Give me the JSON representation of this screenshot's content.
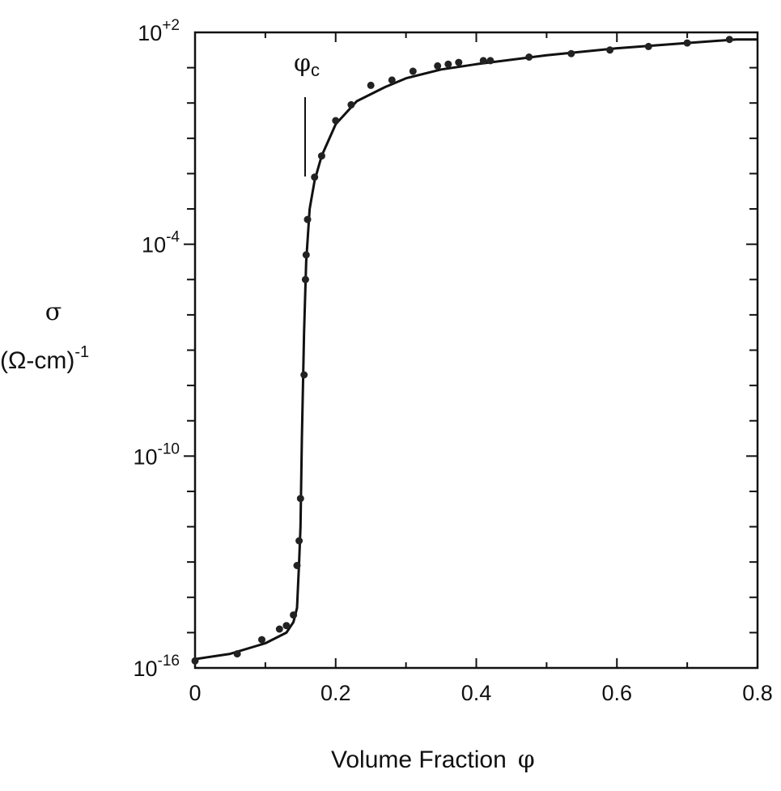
{
  "chart_data": {
    "type": "scatter",
    "xlabel": "Volume  Fraction",
    "xlabel_symbol": "φ",
    "ylabel_symbol": "σ",
    "ylabel_unit_base": "(Ω-cm)",
    "ylabel_unit_exp": "-1",
    "x_ticks": [
      "0",
      "0.2",
      "0.4",
      "0.6",
      "0.8"
    ],
    "y_ticks": [
      {
        "exp": -16,
        "base": "10",
        "sup": "-16"
      },
      {
        "exp": -10,
        "base": "10",
        "sup": "-10"
      },
      {
        "exp": -4,
        "base": "10",
        "sup": "-4"
      },
      {
        "exp": 2,
        "base": "10",
        "sup": "+2"
      }
    ],
    "xlim": [
      0,
      0.8
    ],
    "ylim_log10": [
      -16,
      2
    ],
    "y_scale": "log",
    "grid": false,
    "annotation": {
      "symbol": "φ",
      "subscript": "c",
      "x": 0.157
    },
    "series": [
      {
        "kind": "points",
        "points": [
          [
            0.0,
            -15.8
          ],
          [
            0.06,
            -15.6
          ],
          [
            0.095,
            -15.2
          ],
          [
            0.12,
            -14.9
          ],
          [
            0.13,
            -14.8
          ],
          [
            0.14,
            -14.5
          ],
          [
            0.145,
            -13.1
          ],
          [
            0.148,
            -12.4
          ],
          [
            0.15,
            -11.2
          ],
          [
            0.155,
            -7.7
          ],
          [
            0.157,
            -5.0
          ],
          [
            0.158,
            -4.3
          ],
          [
            0.16,
            -3.3
          ],
          [
            0.17,
            -2.1
          ],
          [
            0.18,
            -1.5
          ],
          [
            0.2,
            -0.5
          ],
          [
            0.222,
            -0.05
          ],
          [
            0.25,
            0.5
          ],
          [
            0.28,
            0.65
          ],
          [
            0.31,
            0.9
          ],
          [
            0.345,
            1.05
          ],
          [
            0.36,
            1.1
          ],
          [
            0.375,
            1.15
          ],
          [
            0.41,
            1.2
          ],
          [
            0.42,
            1.2
          ],
          [
            0.475,
            1.3
          ],
          [
            0.535,
            1.4
          ],
          [
            0.59,
            1.5
          ],
          [
            0.645,
            1.6
          ],
          [
            0.7,
            1.7
          ],
          [
            0.76,
            1.8
          ]
        ]
      },
      {
        "kind": "curve",
        "points": [
          [
            0.0,
            -15.75
          ],
          [
            0.05,
            -15.6
          ],
          [
            0.1,
            -15.3
          ],
          [
            0.13,
            -15.0
          ],
          [
            0.14,
            -14.7
          ],
          [
            0.145,
            -14.3
          ],
          [
            0.148,
            -13.0
          ],
          [
            0.15,
            -12.0
          ],
          [
            0.152,
            -9.5
          ],
          [
            0.155,
            -6.5
          ],
          [
            0.158,
            -4.5
          ],
          [
            0.163,
            -3.0
          ],
          [
            0.17,
            -2.2
          ],
          [
            0.18,
            -1.5
          ],
          [
            0.2,
            -0.6
          ],
          [
            0.23,
            0.05
          ],
          [
            0.27,
            0.45
          ],
          [
            0.3,
            0.7
          ],
          [
            0.35,
            0.95
          ],
          [
            0.4,
            1.1
          ],
          [
            0.5,
            1.35
          ],
          [
            0.6,
            1.55
          ],
          [
            0.7,
            1.7
          ],
          [
            0.77,
            1.8
          ],
          [
            0.8,
            1.8
          ]
        ]
      }
    ]
  }
}
